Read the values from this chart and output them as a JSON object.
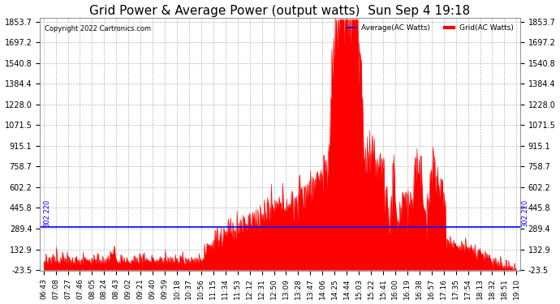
{
  "title": "Grid Power & Average Power (output watts)  Sun Sep 4 19:18",
  "copyright": "Copyright 2022 Cartronics.com",
  "legend_avg": "Average(AC Watts)",
  "legend_grid": "Grid(AC Watts)",
  "avg_value": 302.22,
  "avg_label": "302.220",
  "ymin": -23.5,
  "ymax": 1853.7,
  "yticks": [
    1853.7,
    1697.2,
    1540.8,
    1384.4,
    1228.0,
    1071.5,
    915.1,
    758.7,
    602.2,
    445.8,
    289.4,
    132.9,
    -23.5
  ],
  "x_labels": [
    "06:43",
    "07:08",
    "07:27",
    "07:46",
    "08:05",
    "08:24",
    "08:43",
    "09:02",
    "09:21",
    "09:40",
    "09:59",
    "10:18",
    "10:37",
    "10:56",
    "11:15",
    "11:34",
    "11:53",
    "12:12",
    "12:31",
    "12:50",
    "13:09",
    "13:28",
    "13:47",
    "14:06",
    "14:25",
    "14:44",
    "15:03",
    "15:22",
    "15:41",
    "16:00",
    "16:19",
    "16:38",
    "16:57",
    "17:16",
    "17:35",
    "17:54",
    "18:13",
    "18:32",
    "18:51",
    "19:10"
  ],
  "background_color": "#ffffff",
  "grid_color": "#b0b0b0",
  "fill_color": "#ff0000",
  "line_color": "#ff0000",
  "avg_line_color": "#0000ff",
  "title_fontsize": 11,
  "tick_fontsize": 7,
  "n_points": 800
}
